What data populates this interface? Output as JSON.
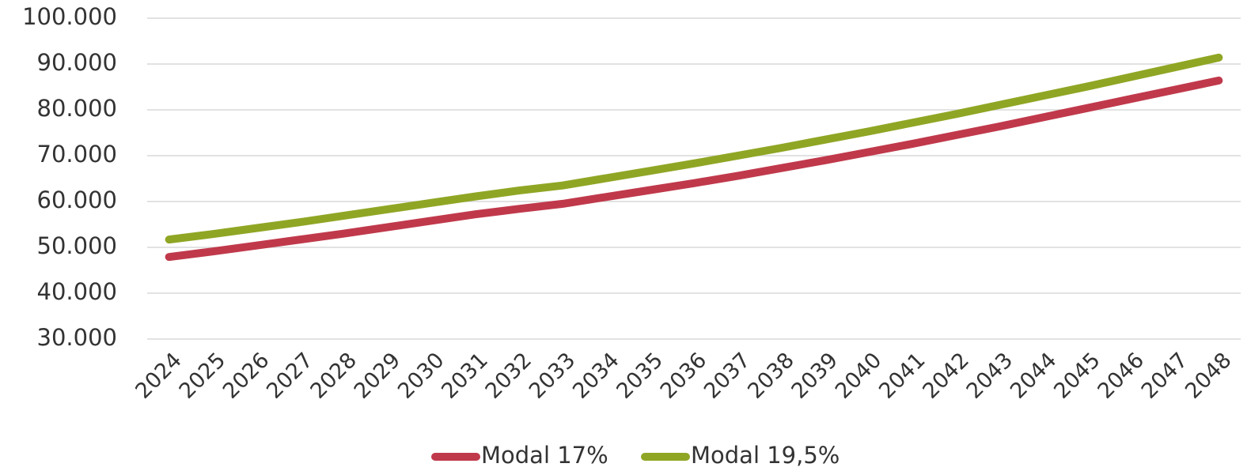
{
  "chart_data": {
    "type": "line",
    "categories": [
      "2024",
      "2025",
      "2026",
      "2027",
      "2028",
      "2029",
      "2030",
      "2031",
      "2032",
      "2033",
      "2034",
      "2035",
      "2036",
      "2037",
      "2038",
      "2039",
      "2040",
      "2041",
      "2042",
      "2043",
      "2044",
      "2045",
      "2046",
      "2047",
      "2048"
    ],
    "series": [
      {
        "name": "Modal 17%",
        "color": "#c0394b",
        "values": [
          47900,
          49100,
          50400,
          51700,
          53000,
          54400,
          55800,
          57200,
          58400,
          59500,
          61000,
          62500,
          64000,
          65600,
          67300,
          69000,
          70800,
          72600,
          74500,
          76400,
          78400,
          80400,
          82400,
          84400,
          86400
        ]
      },
      {
        "name": "Modal 19,5%",
        "color": "#8fa624",
        "values": [
          51700,
          52900,
          54200,
          55500,
          56900,
          58300,
          59700,
          61100,
          62400,
          63500,
          65100,
          66700,
          68300,
          70000,
          71700,
          73500,
          75300,
          77200,
          79100,
          81100,
          83100,
          85100,
          87200,
          89300,
          91400
        ]
      }
    ],
    "ylim": [
      30000,
      100000
    ],
    "yticks": [
      {
        "value": 30000,
        "label": "30.000"
      },
      {
        "value": 40000,
        "label": "40.000"
      },
      {
        "value": 50000,
        "label": "50.000"
      },
      {
        "value": 60000,
        "label": "60.000"
      },
      {
        "value": 70000,
        "label": "70.000"
      },
      {
        "value": 80000,
        "label": "80.000"
      },
      {
        "value": 90000,
        "label": "90.000"
      },
      {
        "value": 100000,
        "label": "100.000"
      }
    ],
    "grid": true,
    "legend": "bottom"
  }
}
